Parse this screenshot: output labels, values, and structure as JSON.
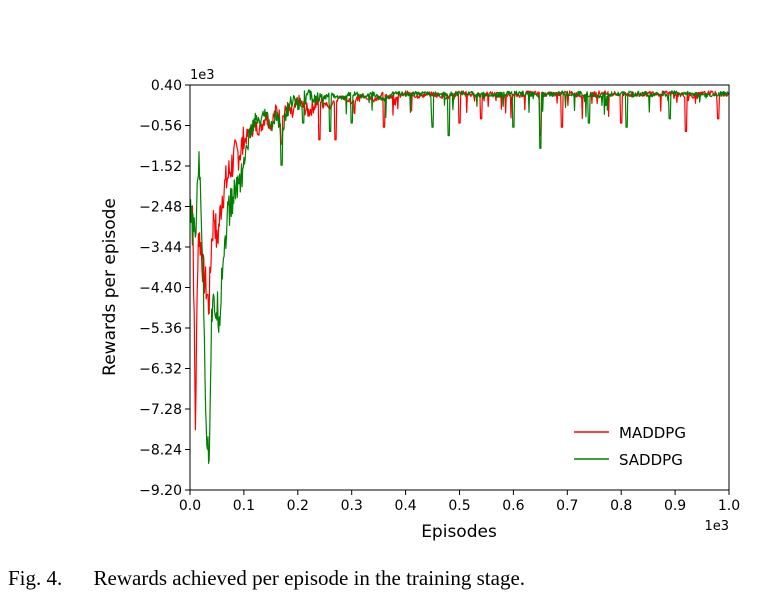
{
  "caption": {
    "label": "Fig. 4.",
    "text": "Rewards achieved per episode in the training stage."
  },
  "chart_data": {
    "type": "line",
    "title": "",
    "xlabel": "Episodes",
    "ylabel": "Rewards per episode",
    "x_offset_text": "1e3",
    "y_offset_text": "1e3",
    "xlim": [
      0.0,
      1.0
    ],
    "ylim": [
      -9.2,
      0.4
    ],
    "x_ticks": [
      0.0,
      0.1,
      0.2,
      0.3,
      0.4,
      0.5,
      0.6,
      0.7,
      0.8,
      0.9,
      1.0
    ],
    "x_tick_labels": [
      "0.0",
      "0.1",
      "0.2",
      "0.3",
      "0.4",
      "0.5",
      "0.6",
      "0.7",
      "0.8",
      "0.9",
      "1.0"
    ],
    "y_ticks": [
      0.4,
      -0.56,
      -1.52,
      -2.48,
      -3.44,
      -4.4,
      -5.36,
      -6.32,
      -7.28,
      -8.24,
      -9.2
    ],
    "y_tick_labels": [
      "0.40",
      "−0.56",
      "−1.52",
      "−2.48",
      "−3.44",
      "−4.40",
      "−5.36",
      "−6.32",
      "−7.28",
      "−8.24",
      "−9.20"
    ],
    "grid": false,
    "legend_position": "lower-right",
    "series": [
      {
        "name": "MADDPG",
        "color": "#ff0000",
        "x": [
          0.0,
          0.005,
          0.01,
          0.015,
          0.02,
          0.025,
          0.03,
          0.035,
          0.04,
          0.045,
          0.05,
          0.06,
          0.07,
          0.08,
          0.09,
          0.1,
          0.11,
          0.12,
          0.13,
          0.14,
          0.15,
          0.16,
          0.17,
          0.18,
          0.19,
          0.2,
          0.22,
          0.24,
          0.26,
          0.28,
          0.3,
          0.32,
          0.34,
          0.36,
          0.38,
          0.4,
          0.42,
          0.45,
          0.48,
          0.5,
          0.53,
          0.56,
          0.6,
          0.63,
          0.66,
          0.7,
          0.73,
          0.76,
          0.8,
          0.83,
          0.86,
          0.9,
          0.93,
          0.96,
          1.0
        ],
        "y": [
          -2.5,
          -2.3,
          -7.6,
          -3.0,
          -3.3,
          -4.0,
          -4.3,
          -4.8,
          -3.2,
          -2.5,
          -3.3,
          -2.1,
          -1.7,
          -1.3,
          -1.1,
          -0.9,
          -0.7,
          -0.55,
          -0.6,
          -0.3,
          -0.5,
          -0.15,
          -0.4,
          -0.1,
          -0.3,
          0.05,
          -0.2,
          0.1,
          -0.1,
          0.15,
          0.0,
          0.18,
          0.05,
          0.2,
          0.1,
          0.22,
          0.15,
          0.2,
          0.12,
          0.22,
          0.18,
          0.2,
          0.15,
          0.22,
          0.18,
          0.22,
          0.16,
          0.22,
          0.2,
          0.18,
          0.22,
          0.2,
          0.15,
          0.22,
          0.18
        ],
        "dips": [
          [
            0.17,
            -1.0
          ],
          [
            0.24,
            -0.9
          ],
          [
            0.27,
            -0.9
          ],
          [
            0.36,
            -0.6
          ],
          [
            0.5,
            -0.5
          ],
          [
            0.54,
            -0.4
          ],
          [
            0.65,
            -0.8
          ],
          [
            0.69,
            -0.6
          ],
          [
            0.8,
            -0.5
          ],
          [
            0.92,
            -0.7
          ],
          [
            0.98,
            -0.4
          ]
        ]
      },
      {
        "name": "SADDPG",
        "color": "#008000",
        "x": [
          0.0,
          0.005,
          0.01,
          0.015,
          0.02,
          0.025,
          0.03,
          0.035,
          0.04,
          0.045,
          0.05,
          0.055,
          0.06,
          0.07,
          0.08,
          0.09,
          0.1,
          0.11,
          0.12,
          0.13,
          0.14,
          0.15,
          0.16,
          0.17,
          0.18,
          0.19,
          0.2,
          0.22,
          0.24,
          0.26,
          0.28,
          0.3,
          0.32,
          0.34,
          0.36,
          0.38,
          0.4,
          0.42,
          0.45,
          0.48,
          0.5,
          0.53,
          0.56,
          0.6,
          0.63,
          0.66,
          0.7,
          0.73,
          0.76,
          0.8,
          0.83,
          0.86,
          0.9,
          0.93,
          0.96,
          1.0
        ],
        "y": [
          -2.6,
          -2.9,
          -3.2,
          -1.3,
          -2.0,
          -4.4,
          -7.5,
          -8.5,
          -5.0,
          -4.8,
          -4.8,
          -5.0,
          -3.8,
          -2.6,
          -2.2,
          -1.8,
          -1.4,
          -0.8,
          -0.4,
          -0.5,
          -0.25,
          -0.6,
          -0.3,
          -0.7,
          -0.2,
          0.1,
          0.0,
          0.2,
          0.05,
          0.2,
          0.1,
          0.22,
          0.15,
          0.2,
          0.05,
          0.22,
          0.18,
          0.22,
          0.2,
          0.18,
          0.22,
          0.2,
          0.16,
          0.22,
          0.2,
          0.18,
          0.22,
          0.2,
          0.16,
          0.22,
          0.2,
          0.18,
          0.22,
          0.2,
          0.16,
          0.22
        ],
        "dips": [
          [
            0.17,
            -1.5
          ],
          [
            0.21,
            -0.5
          ],
          [
            0.26,
            -0.7
          ],
          [
            0.3,
            -0.5
          ],
          [
            0.45,
            -0.6
          ],
          [
            0.48,
            -0.8
          ],
          [
            0.6,
            -0.6
          ],
          [
            0.65,
            -1.1
          ],
          [
            0.74,
            -0.5
          ],
          [
            0.81,
            -0.6
          ],
          [
            0.89,
            -0.4
          ]
        ]
      }
    ]
  }
}
